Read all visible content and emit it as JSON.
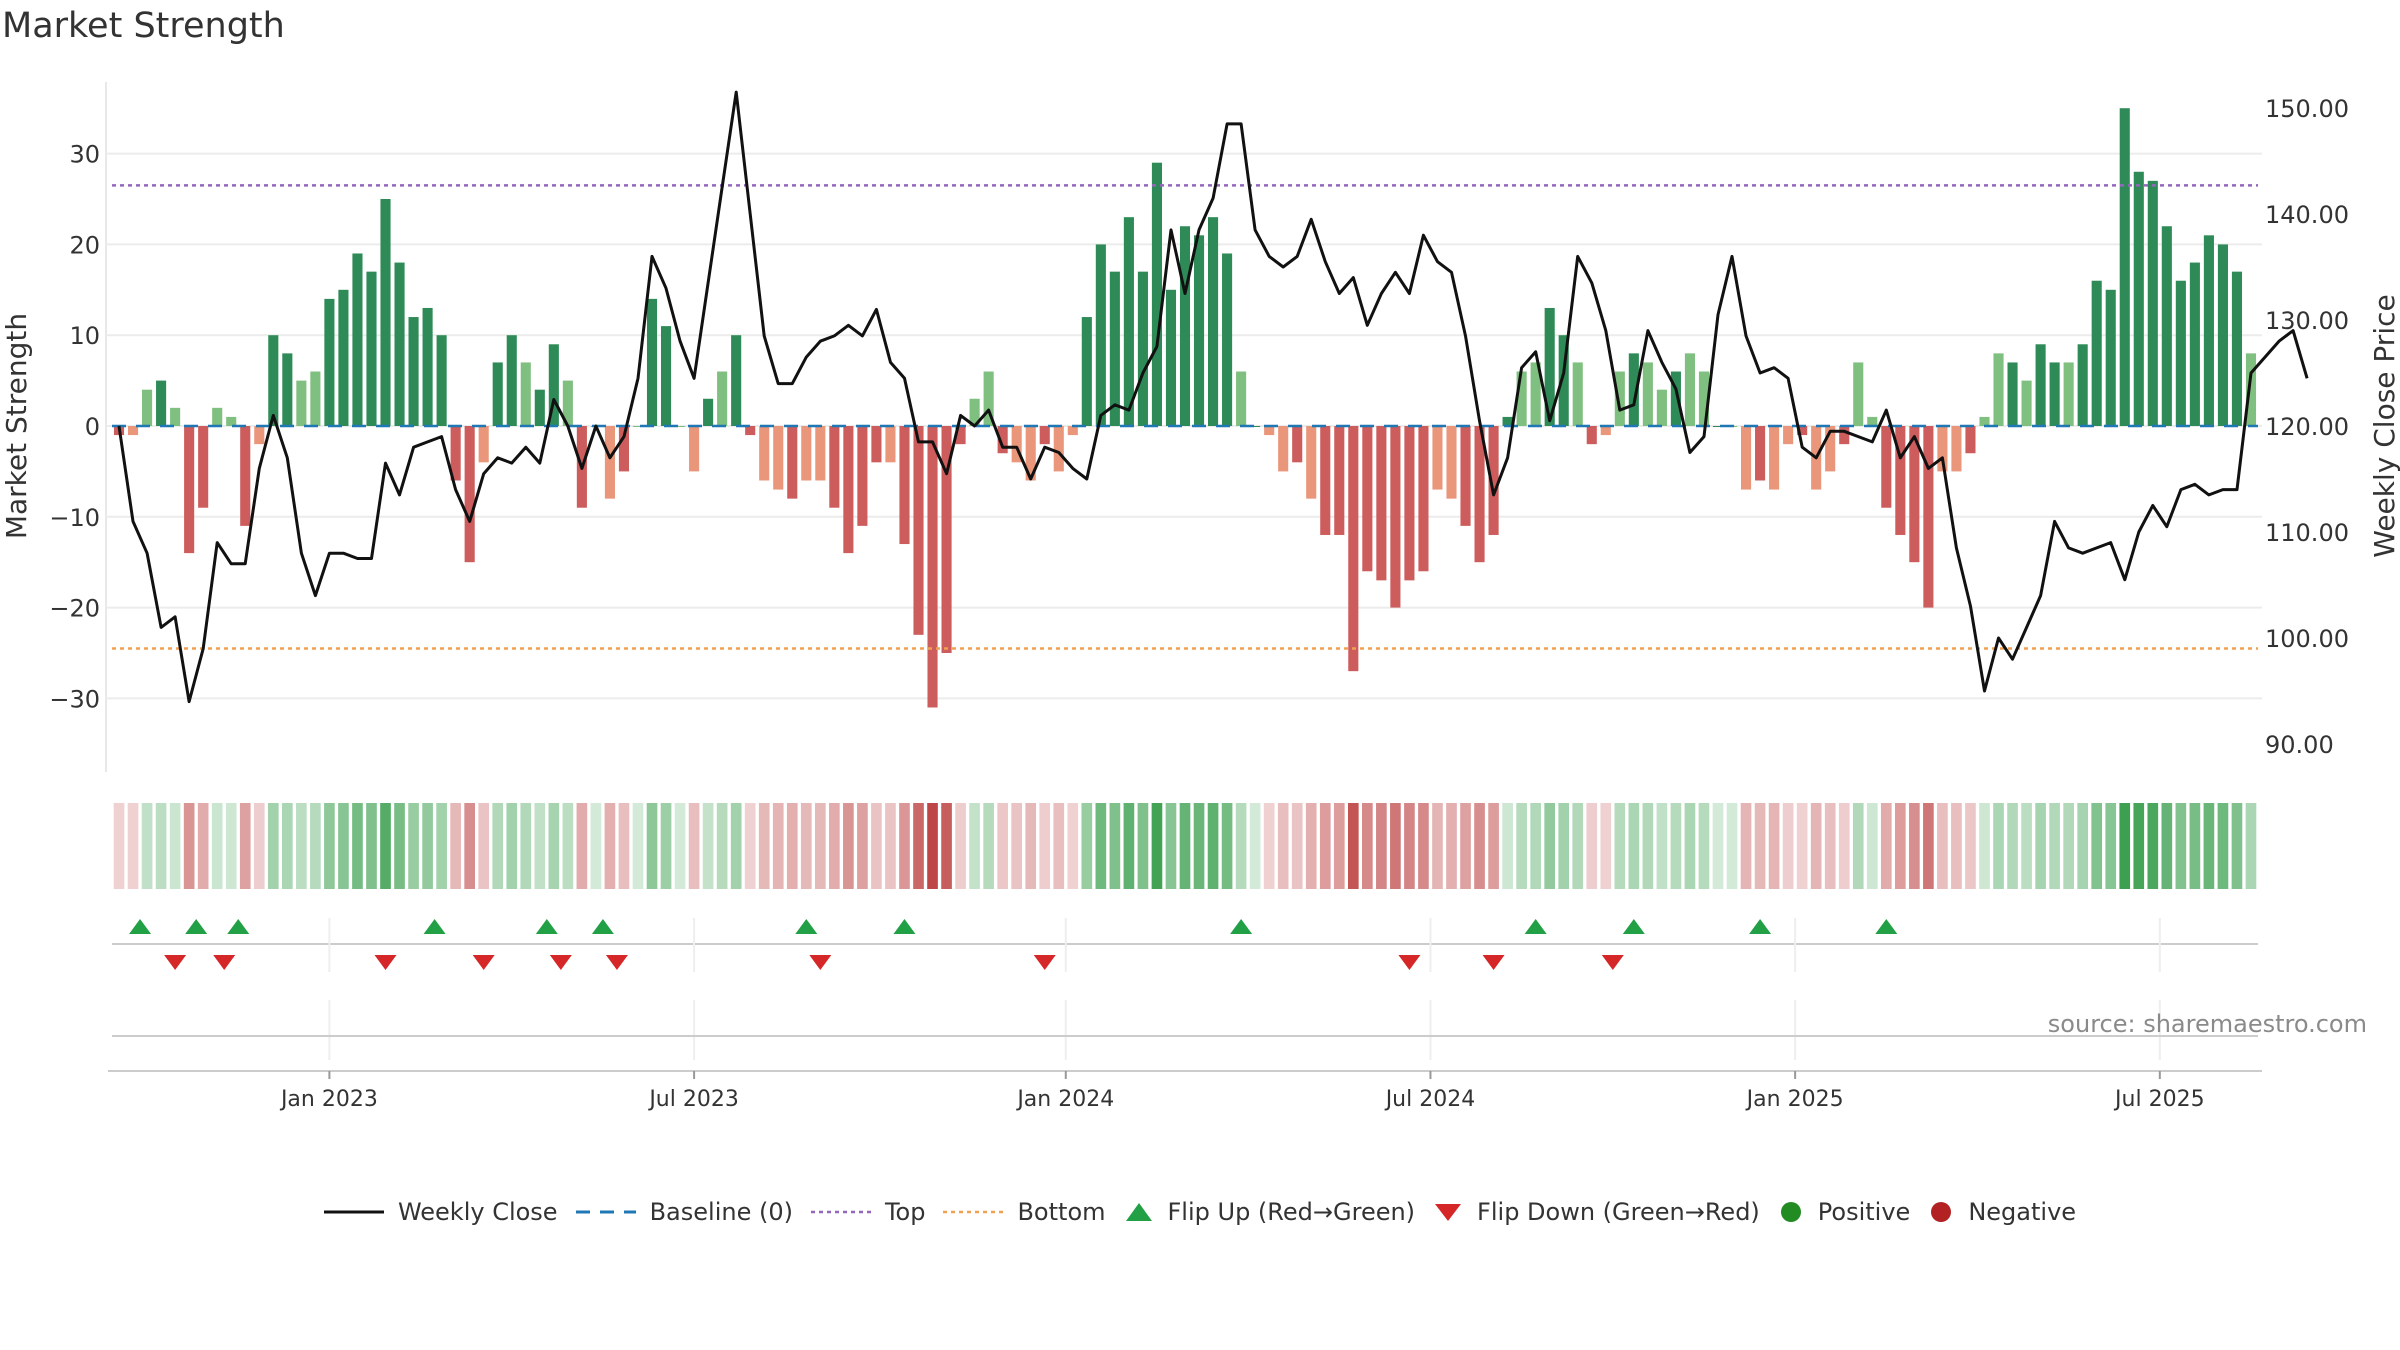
{
  "chart_data": {
    "type": "bar+line",
    "title": "Market Strength",
    "ylabel_left": "Market Strength",
    "ylabel_right": "Weekly Close Price",
    "ylim_left": [
      -38,
      38
    ],
    "ylim_right": [
      88,
      153
    ],
    "yticks_left": [
      30,
      20,
      10,
      0,
      -10,
      -20,
      -30
    ],
    "yticks_left_labels": [
      "30",
      "20",
      "10",
      "0",
      "−10",
      "−20",
      "−30"
    ],
    "yticks_right": [
      150,
      140,
      130,
      120,
      110,
      100,
      90
    ],
    "yticks_right_labels": [
      "150.00",
      "140.00",
      "130.00",
      "120.00",
      "110.00",
      "100.00",
      "90.00"
    ],
    "xticks": [
      "Jan 2023",
      "Jul 2023",
      "Jan 2024",
      "Jul 2024",
      "Jan 2025",
      "Jul 2025"
    ],
    "xticks_index": [
      15,
      41,
      67.5,
      93.5,
      119.5,
      145.5
    ],
    "top_line": 26.5,
    "bottom_line": -24.5,
    "colors": {
      "strong_pos": "#2e8b57",
      "weak_pos": "#7fbf7f",
      "strong_neg": "#cd5c5c",
      "weak_neg": "#e9967a",
      "line": "#111111",
      "baseline": "#1f77b4",
      "top": "#9467bd",
      "bottom": "#f0a050",
      "flip_up": "#22a045",
      "flip_down": "#d62728",
      "positive": "#228b22",
      "negative": "#b22222"
    },
    "strength": [
      -1,
      -1,
      4,
      5,
      2,
      -14,
      -9,
      2,
      1,
      -11,
      -2,
      10,
      8,
      5,
      6,
      14,
      15,
      19,
      17,
      25,
      18,
      12,
      13,
      10,
      -6,
      -15,
      -4,
      7,
      10,
      7,
      4,
      9,
      5,
      -9,
      0,
      -8,
      -5,
      0,
      14,
      11,
      0,
      -5,
      3,
      6,
      10,
      -1,
      -6,
      -7,
      -8,
      -6,
      -6,
      -9,
      -14,
      -11,
      -4,
      -4,
      -13,
      -23,
      -31,
      -25,
      -2,
      3,
      6,
      -3,
      -4,
      -6,
      -2,
      -5,
      -1,
      12,
      20,
      17,
      23,
      17,
      29,
      15,
      22,
      21,
      23,
      19,
      6,
      0,
      -1,
      -5,
      -4,
      -8,
      -12,
      -12,
      -27,
      -16,
      -17,
      -20,
      -17,
      -16,
      -7,
      -8,
      -11,
      -15,
      -12,
      1,
      6,
      7,
      13,
      10,
      7,
      -2,
      -1,
      6,
      8,
      7,
      4,
      6,
      8,
      6,
      0,
      0,
      -7,
      -6,
      -7,
      -2,
      -1,
      -7,
      -5,
      -2,
      7,
      1,
      -9,
      -12,
      -15,
      -20,
      -5,
      -5,
      -3,
      1,
      8,
      7,
      5,
      9,
      7,
      7,
      9,
      16,
      15,
      35,
      28,
      27,
      22,
      16,
      18,
      21,
      20,
      17,
      8
    ],
    "close": [
      120,
      111,
      108,
      101,
      102,
      94,
      99,
      109,
      107,
      107,
      116,
      121,
      117,
      108,
      104,
      108,
      108,
      107.5,
      107.5,
      116.5,
      113.5,
      118,
      118.5,
      119,
      114,
      111,
      115.5,
      117,
      116.5,
      118,
      116.5,
      122.5,
      120,
      116,
      120,
      117,
      119,
      124.5,
      136,
      133,
      128,
      124.5,
      133.5,
      142.5,
      151.5,
      140,
      128.5,
      124,
      124,
      126.5,
      128,
      128.5,
      129.5,
      128.5,
      131,
      126,
      124.5,
      118.5,
      118.5,
      115.5,
      121,
      120,
      121.5,
      118,
      118,
      115,
      118,
      117.5,
      116,
      115,
      121,
      122,
      121.5,
      125,
      127.5,
      138.5,
      132.5,
      138.5,
      141.5,
      148.5,
      148.5,
      138.5,
      136,
      135,
      136,
      139.5,
      135.5,
      132.5,
      134,
      129.5,
      132.5,
      134.5,
      132.5,
      138,
      135.5,
      134.5,
      128.5,
      120.5,
      113.5,
      117,
      125.5,
      127,
      120.5,
      125,
      136,
      133.5,
      129,
      121.5,
      122,
      129,
      126,
      123.5,
      117.5,
      119,
      130.5,
      136,
      128.5,
      125,
      125.5,
      124.5,
      118,
      117,
      119.5,
      119.5,
      119,
      118.5,
      121.5,
      117,
      119,
      116,
      117,
      108.5,
      103,
      95,
      100,
      98,
      101,
      104,
      111,
      108.5,
      108,
      108.5,
      109,
      105.5,
      110,
      112.5,
      110.5,
      114,
      114.5,
      113.5,
      114,
      114,
      125,
      126.5,
      128,
      129,
      124.5
    ],
    "flips_up": [
      1.5,
      5.5,
      8.5,
      22.5,
      30.5,
      34.5,
      49,
      56,
      80,
      101,
      108,
      117,
      126
    ],
    "flips_down": [
      4,
      7.5,
      19,
      26,
      31.5,
      35.5,
      50,
      66,
      92,
      98,
      106.5
    ]
  },
  "source_text": "source: sharemaestro.com",
  "legend": [
    {
      "key": "line",
      "label": "Weekly Close"
    },
    {
      "key": "baseline",
      "label": "Baseline (0)"
    },
    {
      "key": "top",
      "label": "Top"
    },
    {
      "key": "bottom",
      "label": "Bottom"
    },
    {
      "key": "flip_up",
      "label": "Flip Up (Red→Green)"
    },
    {
      "key": "flip_down",
      "label": "Flip Down (Green→Red)"
    },
    {
      "key": "positive",
      "label": "Positive"
    },
    {
      "key": "negative",
      "label": "Negative"
    }
  ]
}
